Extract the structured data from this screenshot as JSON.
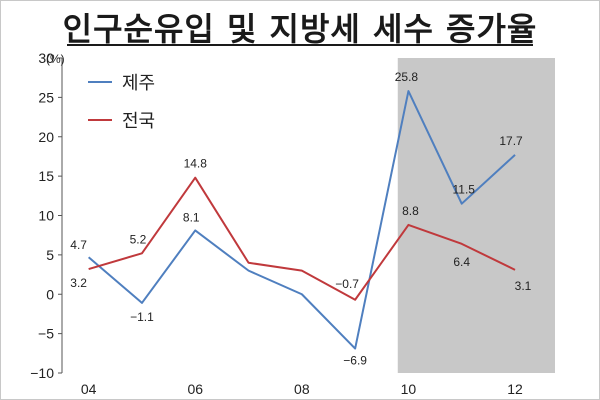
{
  "title": "인구순유입 및 지방세 세수 증가율",
  "chart_data": {
    "type": "line",
    "unit": "(%)",
    "x": [
      2004,
      2005,
      2006,
      2007,
      2008,
      2009,
      2010,
      2011,
      2012
    ],
    "x_tick_labels": [
      "04",
      "06",
      "08",
      "10",
      "12"
    ],
    "x_tick_values": [
      2004,
      2006,
      2008,
      2010,
      2012
    ],
    "ylim": [
      -10,
      30
    ],
    "y_ticks": [
      -10,
      -5,
      0,
      5,
      10,
      15,
      20,
      25,
      30
    ],
    "shaded_region": [
      2009.8,
      2012.4
    ],
    "legend_position": "top-left",
    "series": [
      {
        "name": "제주",
        "color": "#4f7fbf",
        "values": [
          4.7,
          -1.1,
          8.1,
          3.0,
          0.0,
          -6.9,
          25.8,
          11.5,
          17.7
        ],
        "labels": [
          "4.7",
          "−1.1",
          "8.1",
          null,
          null,
          "−6.9",
          "25.8",
          "11.5",
          "17.7"
        ]
      },
      {
        "name": "전국",
        "color": "#c0393c",
        "values": [
          3.2,
          5.2,
          14.8,
          4.0,
          3.0,
          -0.7,
          8.8,
          6.4,
          3.1
        ],
        "labels": [
          "3.2",
          "5.2",
          "14.8",
          null,
          null,
          "−0.7",
          "8.8",
          "6.4",
          "3.1"
        ]
      }
    ]
  }
}
